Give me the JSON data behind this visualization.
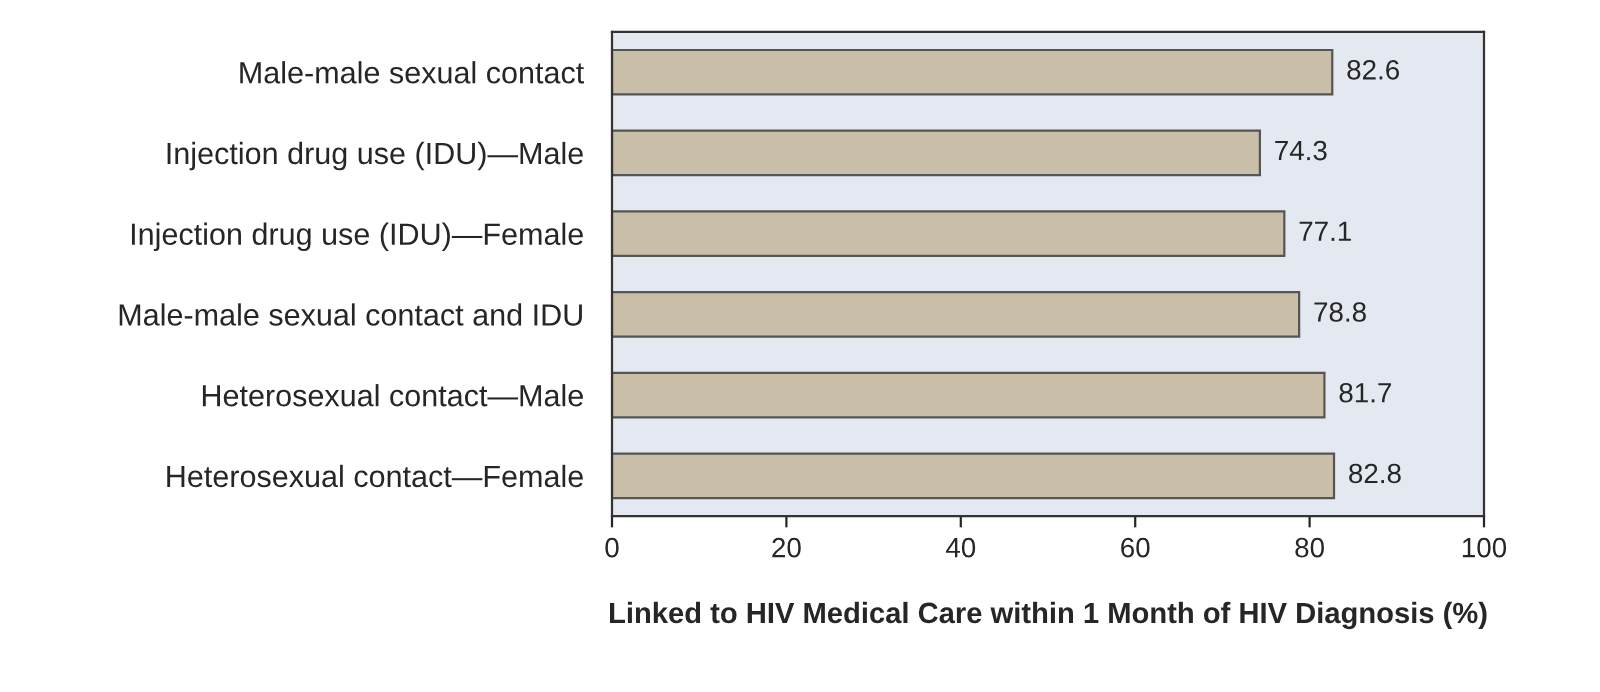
{
  "chart_data": {
    "type": "bar",
    "orientation": "horizontal",
    "categories": [
      "Male-male sexual contact",
      "Injection drug use (IDU)—Male",
      "Injection drug use (IDU)—Female",
      "Male-male sexual contact and IDU",
      "Heterosexual contact—Male",
      "Heterosexual contact—Female"
    ],
    "values": [
      82.6,
      74.3,
      77.1,
      78.8,
      81.7,
      82.8
    ],
    "color": "#c9bea8",
    "xlabel": "Linked to HIV Medical Care within 1 Month of HIV Diagnosis (%)",
    "xlim": [
      0,
      100
    ],
    "xticks": [
      0,
      20,
      40,
      60,
      80,
      100
    ],
    "data_labels": true,
    "grid": false,
    "legend": false
  }
}
